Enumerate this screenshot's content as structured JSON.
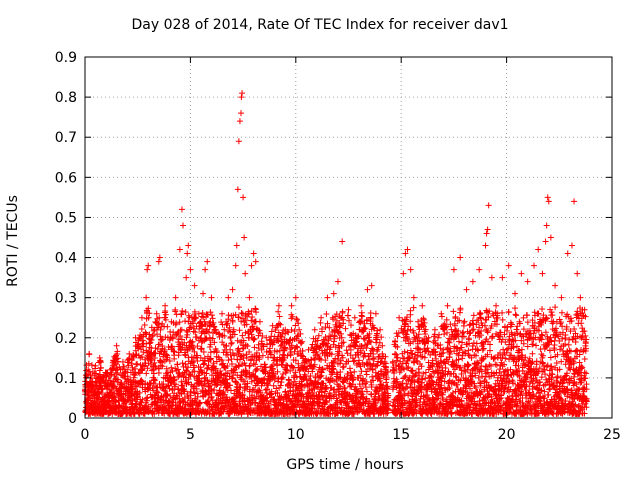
{
  "chart_data": {
    "type": "scatter",
    "title": "Day 028 of 2014, Rate Of TEC Index for receiver dav1",
    "xlabel": "GPS time / hours",
    "ylabel": "ROTI / TECUs",
    "xlim": [
      0,
      25
    ],
    "ylim": [
      0,
      0.9
    ],
    "xticks": [
      0,
      5,
      10,
      15,
      20,
      25
    ],
    "yticks": [
      0,
      0.1,
      0.2,
      0.3,
      0.4,
      0.5,
      0.6,
      0.7,
      0.8,
      0.9
    ],
    "grid": true,
    "marker": "+",
    "series": [
      {
        "name": "dav1",
        "color": "#ff0000",
        "points": [
          [
            0.1,
            0.05
          ],
          [
            0.15,
            0.12
          ],
          [
            0.2,
            0.16
          ],
          [
            0.3,
            0.08
          ],
          [
            0.5,
            0.13
          ],
          [
            0.7,
            0.15
          ],
          [
            0.9,
            0.1
          ],
          [
            1.2,
            0.12
          ],
          [
            1.5,
            0.18
          ],
          [
            1.8,
            0.14
          ],
          [
            2.1,
            0.16
          ],
          [
            2.4,
            0.2
          ],
          [
            2.7,
            0.25
          ],
          [
            2.9,
            0.3
          ],
          [
            2.95,
            0.37
          ],
          [
            3.0,
            0.38
          ],
          [
            3.3,
            0.22
          ],
          [
            3.4,
            0.26
          ],
          [
            3.5,
            0.39
          ],
          [
            3.55,
            0.4
          ],
          [
            3.8,
            0.28
          ],
          [
            4.1,
            0.24
          ],
          [
            4.3,
            0.3
          ],
          [
            4.5,
            0.42
          ],
          [
            4.6,
            0.52
          ],
          [
            4.65,
            0.48
          ],
          [
            4.8,
            0.35
          ],
          [
            4.85,
            0.41
          ],
          [
            4.9,
            0.43
          ],
          [
            5.0,
            0.37
          ],
          [
            5.2,
            0.33
          ],
          [
            5.4,
            0.26
          ],
          [
            5.6,
            0.31
          ],
          [
            5.7,
            0.37
          ],
          [
            5.8,
            0.39
          ],
          [
            6.0,
            0.3
          ],
          [
            6.2,
            0.22
          ],
          [
            6.5,
            0.26
          ],
          [
            6.8,
            0.3
          ],
          [
            7.0,
            0.32
          ],
          [
            7.15,
            0.38
          ],
          [
            7.2,
            0.43
          ],
          [
            7.25,
            0.57
          ],
          [
            7.3,
            0.69
          ],
          [
            7.35,
            0.74
          ],
          [
            7.4,
            0.76
          ],
          [
            7.45,
            0.81
          ],
          [
            7.42,
            0.8
          ],
          [
            7.5,
            0.55
          ],
          [
            7.55,
            0.45
          ],
          [
            7.6,
            0.36
          ],
          [
            7.8,
            0.3
          ],
          [
            7.9,
            0.38
          ],
          [
            8.0,
            0.41
          ],
          [
            8.1,
            0.39
          ],
          [
            8.3,
            0.24
          ],
          [
            8.6,
            0.2
          ],
          [
            8.9,
            0.23
          ],
          [
            9.2,
            0.28
          ],
          [
            9.5,
            0.22
          ],
          [
            9.8,
            0.28
          ],
          [
            10.0,
            0.3
          ],
          [
            10.3,
            0.19
          ],
          [
            10.6,
            0.17
          ],
          [
            10.9,
            0.22
          ],
          [
            11.2,
            0.25
          ],
          [
            11.5,
            0.3
          ],
          [
            11.8,
            0.31
          ],
          [
            12.0,
            0.34
          ],
          [
            12.2,
            0.44
          ],
          [
            12.5,
            0.27
          ],
          [
            12.8,
            0.25
          ],
          [
            13.1,
            0.28
          ],
          [
            13.4,
            0.32
          ],
          [
            13.6,
            0.33
          ],
          [
            13.8,
            0.26
          ],
          [
            14.0,
            0.22
          ],
          [
            14.3,
            0.1
          ],
          [
            14.6,
            0.12
          ],
          [
            14.9,
            0.25
          ],
          [
            15.1,
            0.36
          ],
          [
            15.2,
            0.41
          ],
          [
            15.3,
            0.42
          ],
          [
            15.45,
            0.37
          ],
          [
            15.6,
            0.3
          ],
          [
            15.8,
            0.24
          ],
          [
            16.0,
            0.28
          ],
          [
            16.3,
            0.2
          ],
          [
            16.6,
            0.22
          ],
          [
            16.9,
            0.26
          ],
          [
            17.2,
            0.28
          ],
          [
            17.5,
            0.37
          ],
          [
            17.8,
            0.4
          ],
          [
            18.1,
            0.32
          ],
          [
            18.4,
            0.34
          ],
          [
            18.7,
            0.37
          ],
          [
            19.0,
            0.43
          ],
          [
            19.05,
            0.46
          ],
          [
            19.1,
            0.47
          ],
          [
            19.15,
            0.53
          ],
          [
            19.3,
            0.35
          ],
          [
            19.5,
            0.28
          ],
          [
            19.8,
            0.35
          ],
          [
            20.1,
            0.38
          ],
          [
            20.4,
            0.31
          ],
          [
            20.7,
            0.36
          ],
          [
            21.0,
            0.34
          ],
          [
            21.3,
            0.38
          ],
          [
            21.5,
            0.42
          ],
          [
            21.7,
            0.36
          ],
          [
            21.85,
            0.44
          ],
          [
            21.9,
            0.48
          ],
          [
            21.95,
            0.55
          ],
          [
            22.0,
            0.54
          ],
          [
            22.1,
            0.45
          ],
          [
            22.3,
            0.33
          ],
          [
            22.6,
            0.3
          ],
          [
            22.9,
            0.41
          ],
          [
            23.1,
            0.43
          ],
          [
            23.2,
            0.54
          ],
          [
            23.35,
            0.36
          ],
          [
            23.5,
            0.3
          ],
          [
            23.6,
            0.27
          ],
          [
            23.7,
            0.27
          ]
        ]
      }
    ],
    "dense_band": {
      "description": "dense cloud of points below the sparse maxima",
      "segments": [
        {
          "from": 0.0,
          "to": 14.4,
          "floor": 0.01
        },
        {
          "from": 14.6,
          "to": 23.8,
          "floor": 0.01
        }
      ]
    }
  }
}
